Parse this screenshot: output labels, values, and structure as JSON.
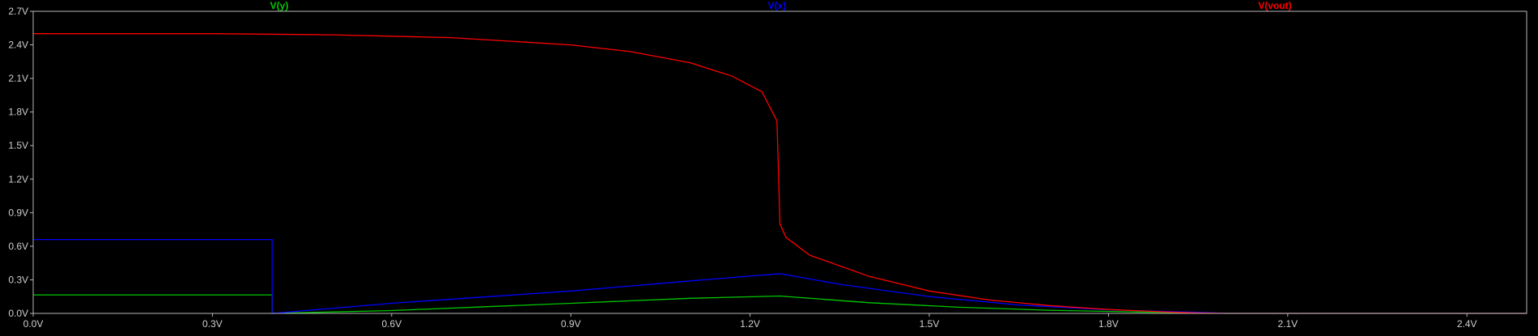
{
  "chart_data": {
    "type": "line",
    "title": "",
    "xlabel": "",
    "ylabel": "",
    "xlim": [
      0,
      2.5
    ],
    "ylim": [
      0,
      2.7
    ],
    "x_ticks": [
      "0.0V",
      "0.3V",
      "0.6V",
      "0.9V",
      "1.2V",
      "1.5V",
      "1.8V",
      "2.1V",
      "2.4V"
    ],
    "x_tick_values": [
      0,
      0.3,
      0.6,
      0.9,
      1.2,
      1.5,
      1.8,
      2.1,
      2.4
    ],
    "y_ticks": [
      "0.0V",
      "0.3V",
      "0.6V",
      "0.9V",
      "1.2V",
      "1.5V",
      "1.8V",
      "2.1V",
      "2.4V",
      "2.7V"
    ],
    "y_tick_values": [
      0,
      0.3,
      0.6,
      0.9,
      1.2,
      1.5,
      1.8,
      2.1,
      2.4,
      2.7
    ],
    "legend_position": "top",
    "grid": false,
    "background": "#000000",
    "frame_color": "#b8b8b8",
    "series": [
      {
        "name": "V(y)",
        "color": "#00c800",
        "points": [
          [
            0,
            0.165
          ],
          [
            0.4,
            0.165
          ],
          [
            0.4,
            0.0
          ],
          [
            0.6,
            0.025
          ],
          [
            0.9,
            0.09
          ],
          [
            1.1,
            0.135
          ],
          [
            1.25,
            0.155
          ],
          [
            1.4,
            0.095
          ],
          [
            1.55,
            0.055
          ],
          [
            1.7,
            0.028
          ],
          [
            1.85,
            0.012
          ],
          [
            1.95,
            0.004
          ],
          [
            2.0,
            0.0
          ],
          [
            2.5,
            0.0
          ]
        ]
      },
      {
        "name": "V(x)",
        "color": "#0000ff",
        "points": [
          [
            0,
            0.66
          ],
          [
            0.4,
            0.66
          ],
          [
            0.4,
            0.0
          ],
          [
            0.6,
            0.09
          ],
          [
            0.9,
            0.2
          ],
          [
            1.1,
            0.29
          ],
          [
            1.25,
            0.355
          ],
          [
            1.35,
            0.26
          ],
          [
            1.5,
            0.15
          ],
          [
            1.65,
            0.075
          ],
          [
            1.8,
            0.032
          ],
          [
            1.95,
            0.01
          ],
          [
            2.0,
            0.0
          ],
          [
            2.5,
            0.0
          ]
        ]
      },
      {
        "name": "V(vout)",
        "color": "#ff0000",
        "points": [
          [
            0,
            2.5
          ],
          [
            0.3,
            2.5
          ],
          [
            0.5,
            2.49
          ],
          [
            0.7,
            2.465
          ],
          [
            0.9,
            2.4
          ],
          [
            1.0,
            2.34
          ],
          [
            1.1,
            2.24
          ],
          [
            1.17,
            2.12
          ],
          [
            1.22,
            1.98
          ],
          [
            1.245,
            1.72
          ],
          [
            1.248,
            1.2
          ],
          [
            1.25,
            0.8
          ],
          [
            1.26,
            0.68
          ],
          [
            1.3,
            0.52
          ],
          [
            1.4,
            0.33
          ],
          [
            1.5,
            0.2
          ],
          [
            1.6,
            0.12
          ],
          [
            1.7,
            0.07
          ],
          [
            1.8,
            0.035
          ],
          [
            1.9,
            0.012
          ],
          [
            1.95,
            0.004
          ],
          [
            2.0,
            0.0
          ],
          [
            2.5,
            0.0
          ]
        ]
      }
    ]
  }
}
